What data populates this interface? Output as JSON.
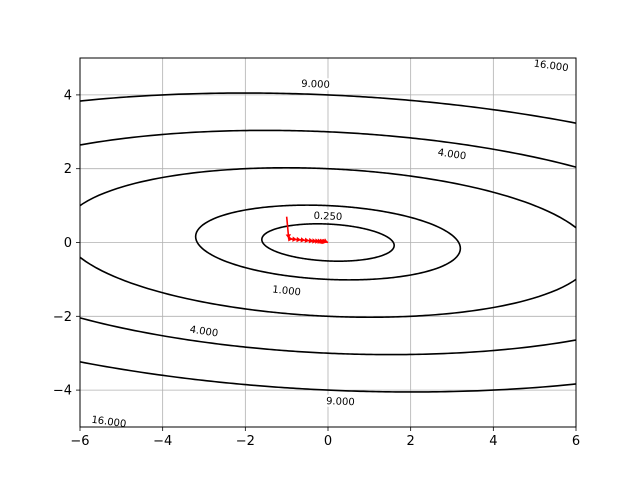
{
  "chart_data": {
    "type": "contour",
    "title": "",
    "xlabel": "",
    "ylabel": "",
    "xlim": [
      -6,
      6
    ],
    "ylim": [
      -5,
      5
    ],
    "grid": true,
    "x_ticks": [
      -6,
      -4,
      -2,
      0,
      2,
      4,
      6
    ],
    "y_ticks": [
      -4,
      -2,
      0,
      2,
      4
    ],
    "x_tick_labels": [
      "−6",
      "−4",
      "−2",
      "0",
      "2",
      "4",
      "6"
    ],
    "y_tick_labels": [
      "−4",
      "−2",
      "0",
      "2",
      "4"
    ],
    "contour_levels": [
      0.25,
      1.0,
      4.0,
      9.0,
      16.0
    ],
    "contour_labels": [
      "0.250",
      "1.000",
      "4.000",
      "9.000",
      "16.000"
    ],
    "contour_function": {
      "a": 0.1,
      "b": 0.1,
      "c": 1.0,
      "note_form": "a*x^2 + b*x*y + c*y^2"
    },
    "contour_color": "#000000",
    "label_positions": [
      {
        "text": "0.250",
        "x": 0.0,
        "y": 0.72
      },
      {
        "text": "1.000",
        "x": -1.0,
        "y": -1.3
      },
      {
        "text": "4.000",
        "x": -3.0,
        "y": -2.4
      },
      {
        "text": "4.000",
        "x": 3.0,
        "y": 2.4
      },
      {
        "text": "9.000",
        "x": -0.3,
        "y": 4.3
      },
      {
        "text": "9.000",
        "x": 0.3,
        "y": -4.3
      },
      {
        "text": "16.000",
        "x": 5.4,
        "y": 4.8
      },
      {
        "text": "16.000",
        "x": -5.3,
        "y": -4.85
      }
    ],
    "path": {
      "color": "#ff0000",
      "points": [
        [
          -1.0,
          0.7
        ],
        [
          -0.95,
          0.1
        ],
        [
          -0.85,
          0.09
        ],
        [
          -0.75,
          0.08
        ],
        [
          -0.65,
          0.07
        ],
        [
          -0.55,
          0.06
        ],
        [
          -0.45,
          0.05
        ],
        [
          -0.35,
          0.04
        ],
        [
          -0.27,
          0.035
        ],
        [
          -0.2,
          0.03
        ],
        [
          -0.14,
          0.025
        ],
        [
          -0.09,
          0.02
        ],
        [
          -0.05,
          0.015
        ],
        [
          -0.02,
          0.01
        ],
        [
          0.0,
          0.0
        ]
      ]
    }
  }
}
